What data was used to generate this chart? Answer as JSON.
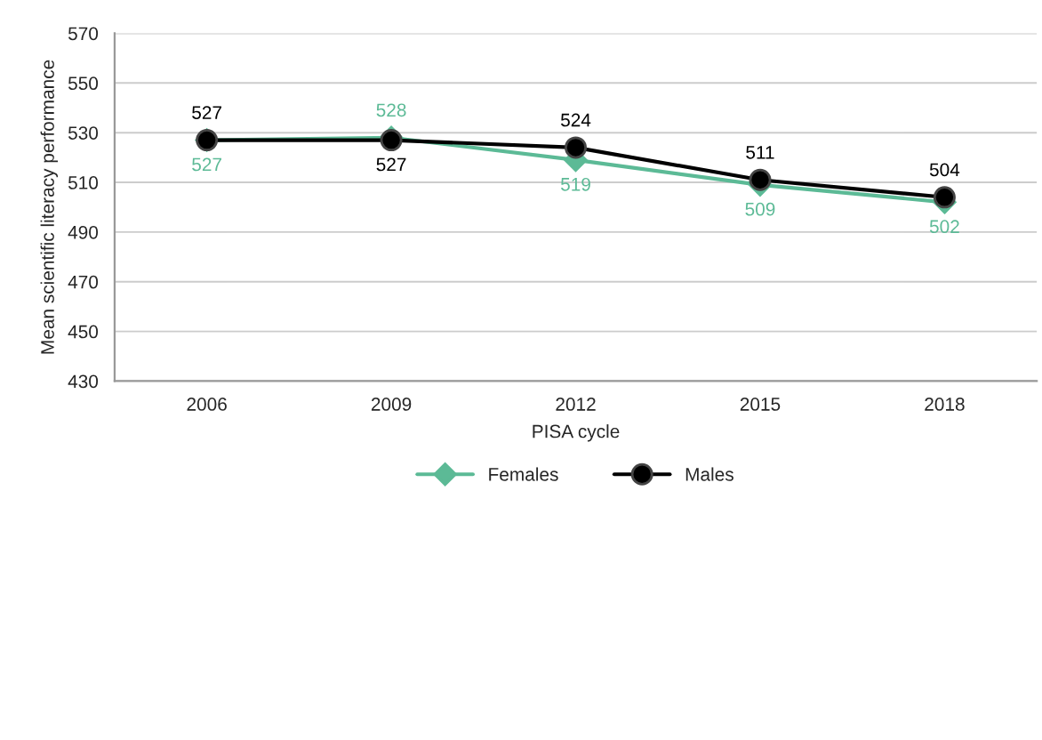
{
  "chart_data": {
    "type": "line",
    "xlabel": "PISA cycle",
    "ylabel": "Mean scientific literacy performance",
    "categories": [
      "2006",
      "2009",
      "2012",
      "2015",
      "2018"
    ],
    "series": [
      {
        "name": "Females",
        "color": "#5cba96",
        "values": [
          527,
          528,
          519,
          509,
          502
        ],
        "marker": "diamond"
      },
      {
        "name": "Males",
        "color": "#000000",
        "values": [
          527,
          527,
          524,
          511,
          504
        ],
        "marker": "circle"
      }
    ],
    "ylim": [
      430,
      570
    ],
    "yticks": [
      430,
      450,
      470,
      490,
      510,
      530,
      550,
      570
    ],
    "grid": "y",
    "legend": "bottom",
    "data_labels": true,
    "line_style": "solid"
  }
}
